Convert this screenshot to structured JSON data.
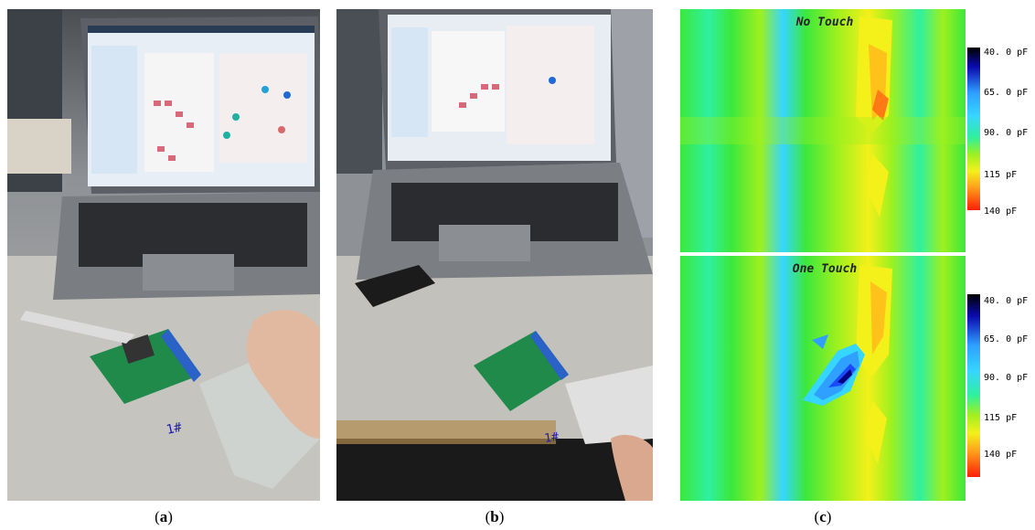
{
  "figure": {
    "panels": [
      {
        "id": "a",
        "caption_open": "(",
        "caption_letter": "a",
        "caption_close": ")",
        "subject": "laptop with capacitance sensing GUI, sensor board, hand touching glass panel"
      },
      {
        "id": "b",
        "caption_open": "(",
        "caption_letter": "b",
        "caption_close": ")",
        "subject": "laptop with GUI, black interface box, sensor board, taped sensor sheet, finger touching"
      },
      {
        "id": "c",
        "caption_open": "(",
        "caption_letter": "c",
        "caption_close": ")",
        "subject": "capacitance heatmaps"
      }
    ],
    "heatmaps": [
      {
        "title": "No Touch",
        "legend": [
          "40. 0 pF",
          "65. 0 pF",
          "90. 0 pF",
          "115 pF",
          "140 pF"
        ]
      },
      {
        "title": "One Touch",
        "legend": [
          "40. 0 pF",
          "65. 0 pF",
          "90. 0 pF",
          "115 pF",
          "140 pF"
        ]
      }
    ],
    "handwritten_label_a": "1#",
    "handwritten_label_b": "1#"
  },
  "colors": {
    "scale": [
      "#000000",
      "#0a0ab0",
      "#1a4cff",
      "#2fa0ff",
      "#35d6ff",
      "#2ef0a0",
      "#3ce83c",
      "#9ef01e",
      "#f4f01a",
      "#ffc21a",
      "#ff7a14",
      "#ff1e0a"
    ]
  }
}
